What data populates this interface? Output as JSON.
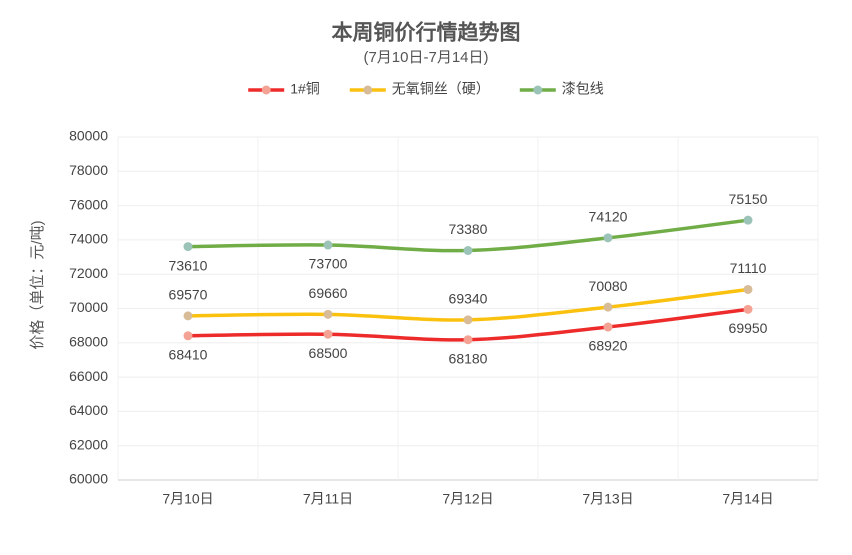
{
  "chart_data": {
    "type": "line",
    "title": "本周铜价行情趋势图",
    "subtitle": "(7月10日-7月14日)",
    "y_label": "价格（单位：元/吨)",
    "categories": [
      "7月10日",
      "7月11日",
      "7月12日",
      "7月13日",
      "7月14日"
    ],
    "series": [
      {
        "name": "1#铜",
        "color": "#ee2b2b",
        "marker_color": "#f4a293",
        "values": [
          68410,
          68500,
          68180,
          68920,
          69950
        ]
      },
      {
        "name": "无氧铜丝（硬）",
        "color": "#fbc10f",
        "marker_color": "#d8bc97",
        "values": [
          69570,
          69660,
          69340,
          70080,
          71110
        ]
      },
      {
        "name": "漆包线",
        "color": "#70ad47",
        "marker_color": "#9bc3b8",
        "values": [
          73610,
          73700,
          73380,
          74120,
          75150
        ]
      }
    ],
    "ylim": [
      60000,
      80000
    ],
    "yticks": [
      60000,
      62000,
      64000,
      66000,
      68000,
      70000,
      72000,
      74000,
      76000,
      78000,
      80000
    ],
    "grid": true,
    "smooth": true,
    "legend": "top"
  }
}
